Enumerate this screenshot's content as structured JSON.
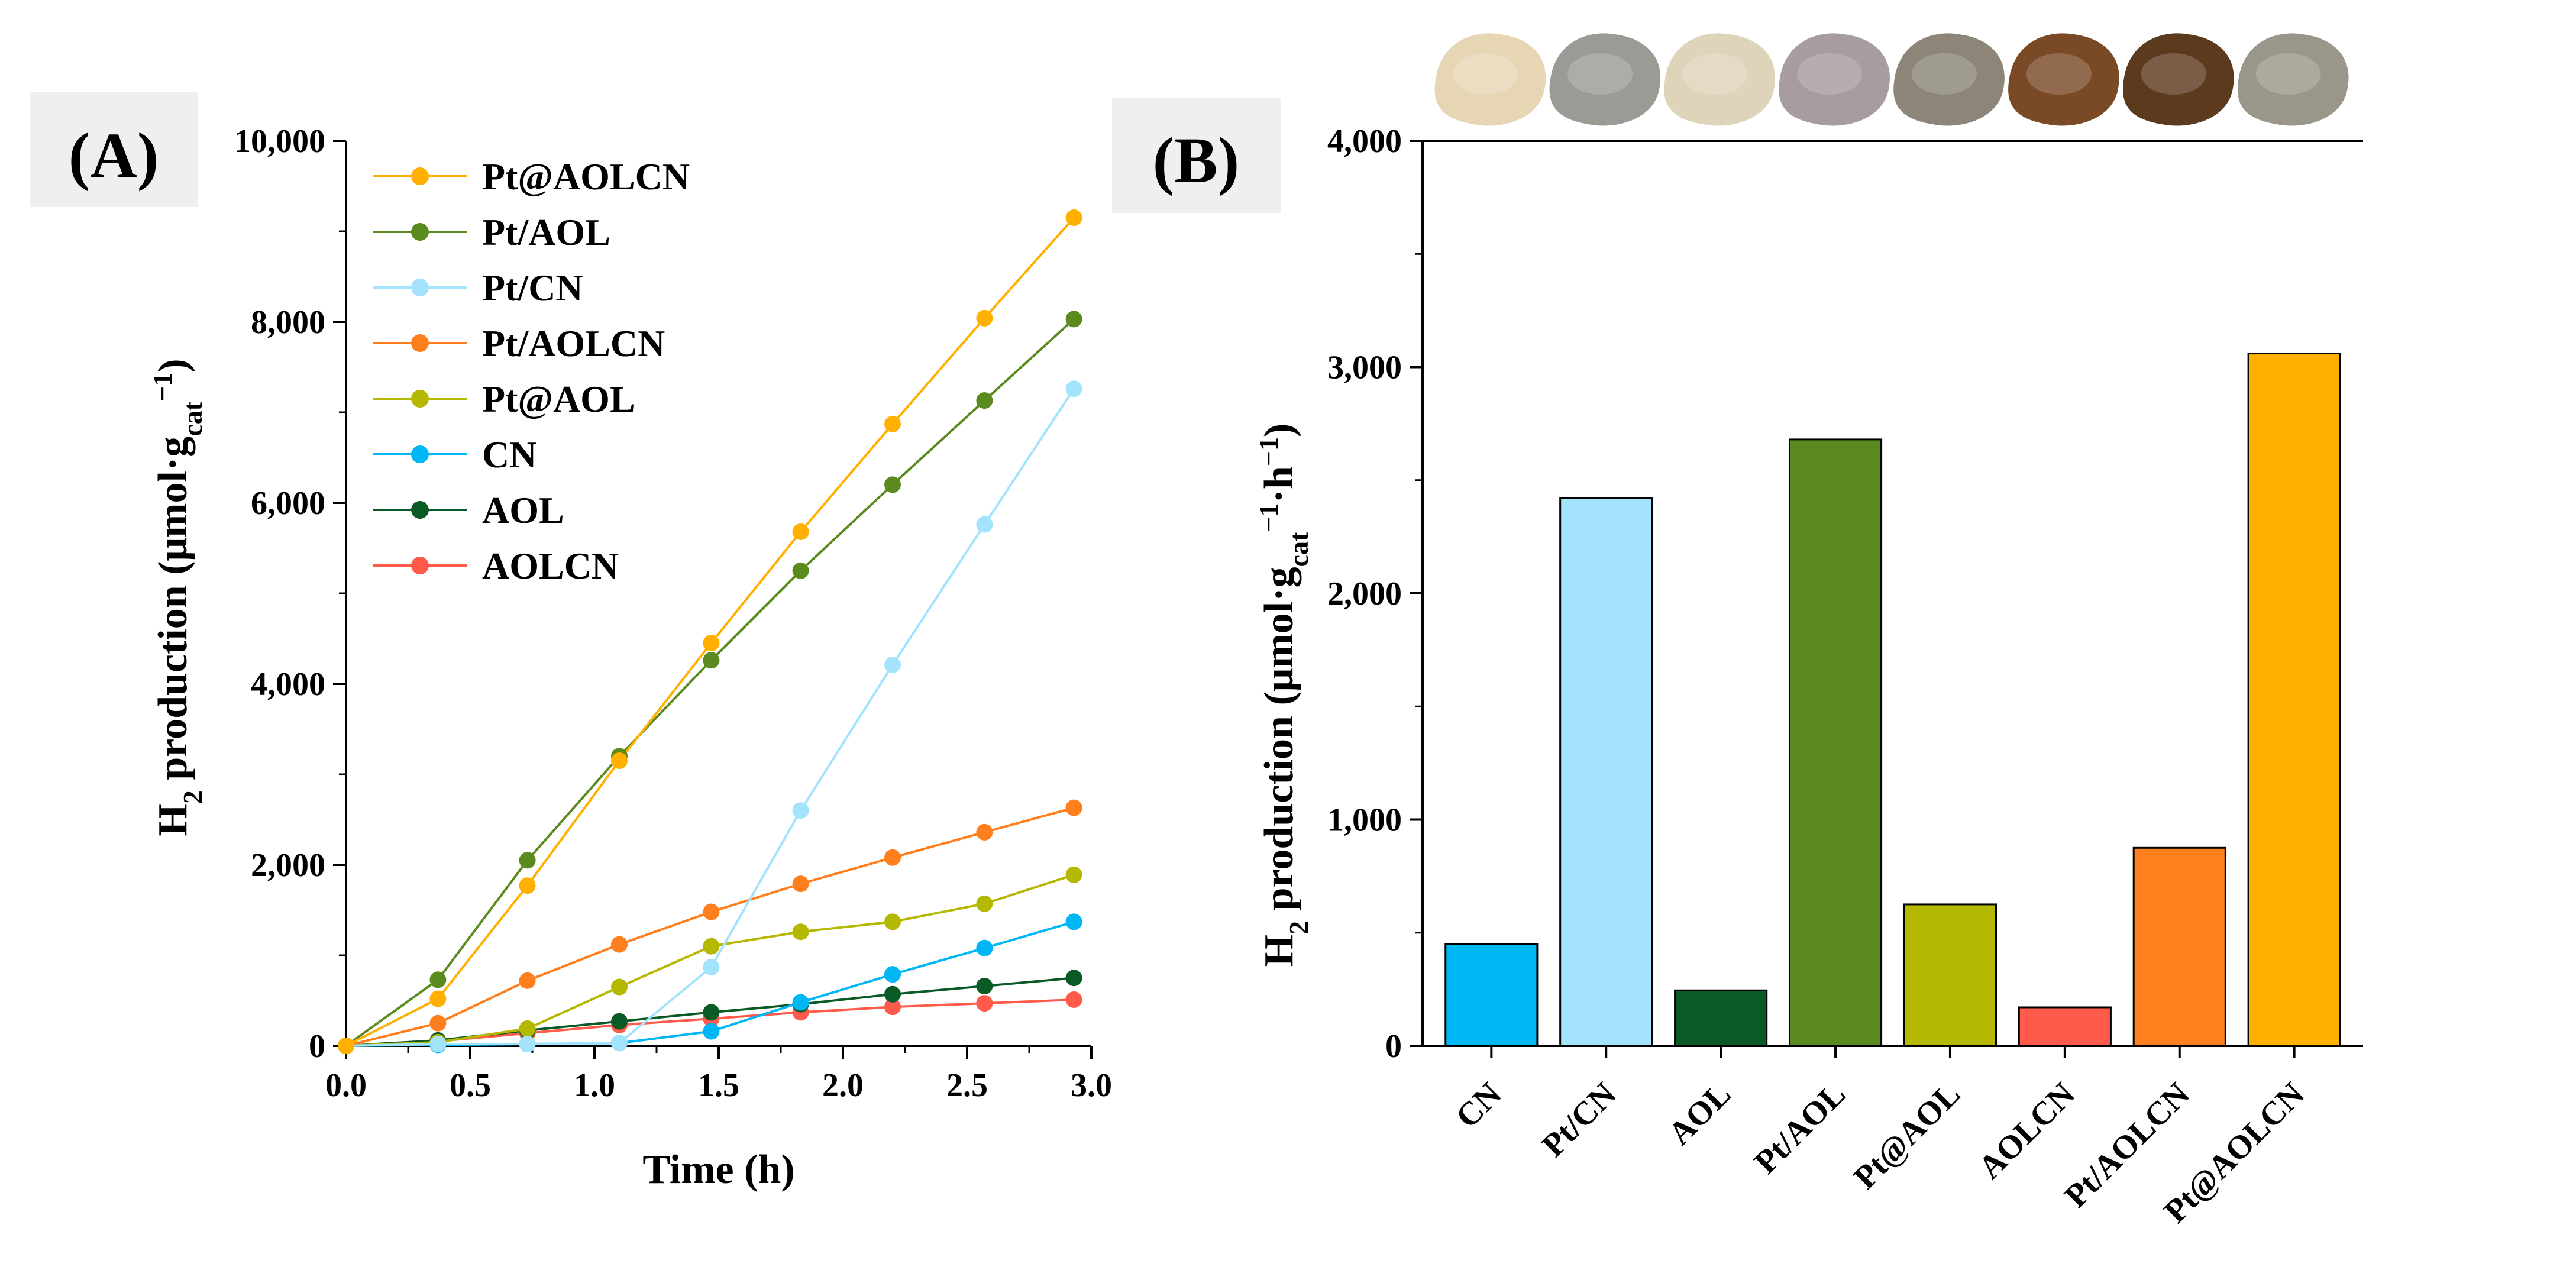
{
  "panel_a": {
    "label": "(A)",
    "xlabel": "Time (h)",
    "ylabel": {
      "main": "H",
      "sub1": "2",
      "mid": " production (μmol·g",
      "sub2": "cat",
      "sup": "−1",
      "end": ")"
    }
  },
  "panel_b": {
    "label": "(B)",
    "ylabel": {
      "main": "H",
      "sub1": "2",
      "mid": " production (μmol·g",
      "sub2": "cat",
      "sup1": "−1",
      "dot": "·h",
      "sup2": "−1",
      "end": ")"
    }
  },
  "colors": {
    "Pt@AOLCN": "#FFB000",
    "Pt/AOL": "#5B8A1E",
    "Pt/CN": "#A3E4FC",
    "Pt/AOLCN": "#FF7F1F",
    "Pt@AOL": "#B5B800",
    "CN": "#00B7F5",
    "AOL": "#0A5A26",
    "AOLCN": "#FF5A4A"
  },
  "chart_data": [
    {
      "type": "line",
      "x": [
        0.0,
        0.37,
        0.73,
        1.1,
        1.47,
        1.83,
        2.2,
        2.57,
        2.93
      ],
      "xlim": [
        0.0,
        3.0
      ],
      "ylim": [
        0,
        10000
      ],
      "xticks": [
        "0.0",
        "0.5",
        "1.0",
        "1.5",
        "2.0",
        "2.5",
        "3.0"
      ],
      "yticks": [
        "0",
        "2,000",
        "4,000",
        "6,000",
        "8,000",
        "10,000"
      ],
      "xlabel": "Time (h)",
      "ylabel": "H2 production (μmol·gcat−1)",
      "legend_position": "top-left",
      "series": [
        {
          "name": "Pt@AOLCN",
          "values": [
            0,
            520,
            1770,
            3150,
            4450,
            5680,
            6870,
            8040,
            9150
          ]
        },
        {
          "name": "Pt/AOL",
          "values": [
            0,
            730,
            2050,
            3200,
            4260,
            5250,
            6200,
            7130,
            8030
          ]
        },
        {
          "name": "Pt/CN",
          "values": [
            0,
            20,
            20,
            30,
            870,
            2600,
            4210,
            5760,
            7260
          ]
        },
        {
          "name": "Pt/AOLCN",
          "values": [
            0,
            250,
            720,
            1120,
            1480,
            1790,
            2080,
            2360,
            2630
          ]
        },
        {
          "name": "Pt@AOL",
          "values": [
            0,
            40,
            190,
            650,
            1100,
            1260,
            1370,
            1570,
            1890
          ]
        },
        {
          "name": "CN",
          "values": [
            0,
            10,
            20,
            30,
            160,
            480,
            790,
            1080,
            1370
          ]
        },
        {
          "name": "AOL",
          "values": [
            0,
            60,
            170,
            270,
            370,
            460,
            570,
            660,
            750
          ]
        },
        {
          "name": "AOLCN",
          "values": [
            0,
            50,
            140,
            230,
            300,
            370,
            430,
            470,
            510
          ]
        }
      ]
    },
    {
      "type": "bar",
      "categories": [
        "CN",
        "Pt/CN",
        "AOL",
        "Pt/AOL",
        "Pt@AOL",
        "AOLCN",
        "Pt/AOLCN",
        "Pt@AOLCN"
      ],
      "values": [
        450,
        2420,
        245,
        2680,
        625,
        170,
        875,
        3060
      ],
      "ylim": [
        0,
        4000
      ],
      "yticks": [
        "0",
        "1,000",
        "2,000",
        "3,000",
        "4,000"
      ],
      "xlabel": "",
      "ylabel": "H2 production (μmol·gcat−1·h−1)",
      "bar_colors": [
        "#00B7F5",
        "#A3E4FC",
        "#0A5A26",
        "#5B8A1E",
        "#B5B800",
        "#FF5A4A",
        "#FF7F1F",
        "#FFB000"
      ],
      "sample_photo_colors": [
        "#E6D6B4",
        "#9C9A94",
        "#DDD4BA",
        "#A79CA2",
        "#8C8578",
        "#7A4A26",
        "#5C3A1E",
        "#9A968A"
      ]
    }
  ]
}
